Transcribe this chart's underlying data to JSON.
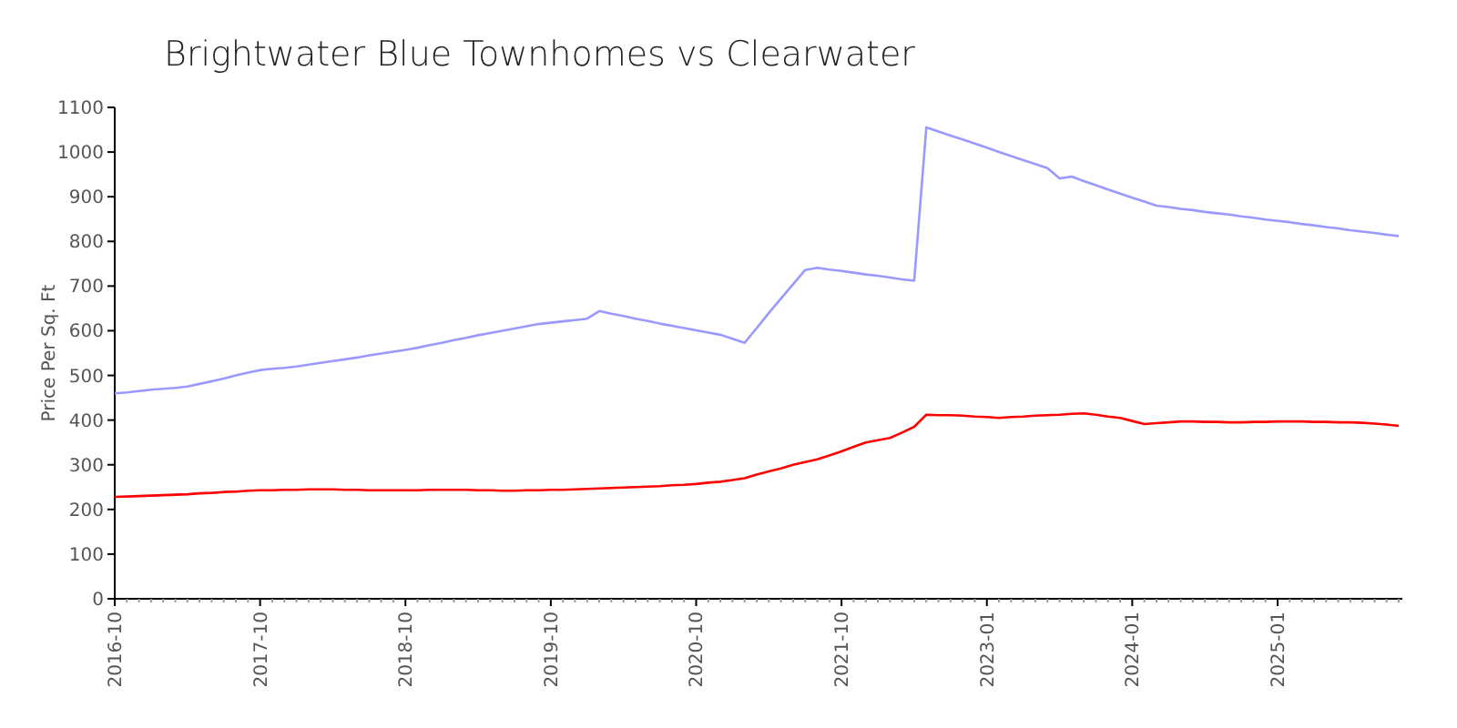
{
  "chart_data": {
    "type": "line",
    "title": "Brightwater Blue Townhomes vs Clearwater",
    "ylabel": "Price Per Sq. Ft",
    "categories": [
      "2016-10",
      null,
      null,
      null,
      null,
      null,
      null,
      null,
      null,
      null,
      null,
      null,
      "2017-10",
      null,
      null,
      null,
      null,
      null,
      null,
      null,
      null,
      null,
      null,
      null,
      "2018-10",
      null,
      null,
      null,
      null,
      null,
      null,
      null,
      null,
      null,
      null,
      null,
      "2019-10",
      null,
      null,
      null,
      null,
      null,
      null,
      null,
      null,
      null,
      null,
      null,
      "2020-10",
      null,
      null,
      null,
      null,
      null,
      null,
      null,
      null,
      null,
      null,
      null,
      "2021-10",
      null,
      null,
      null,
      null,
      null,
      null,
      null,
      null,
      null,
      null,
      null,
      "2023-01",
      null,
      null,
      null,
      null,
      null,
      null,
      null,
      null,
      null,
      null,
      null,
      "2024-01",
      null,
      null,
      null,
      null,
      null,
      null,
      null,
      null,
      null,
      null,
      null,
      "2025-01",
      null,
      null,
      null,
      null,
      null,
      null,
      null,
      null,
      null,
      null
    ],
    "ylim": [
      0,
      1100
    ],
    "yticks": [
      0,
      100,
      200,
      300,
      400,
      500,
      600,
      700,
      800,
      900,
      1000,
      1100
    ],
    "line_style": "solid",
    "series": [
      {
        "color": "#9999ff",
        "values": [
          460,
          462,
          465,
          468,
          470,
          472,
          475,
          481,
          487,
          493,
          500,
          506,
          512,
          515,
          517,
          520,
          524,
          528,
          532,
          536,
          540,
          545,
          549,
          553,
          557,
          562,
          568,
          573,
          579,
          584,
          590,
          595,
          600,
          605,
          610,
          615,
          618,
          621,
          624,
          627,
          644,
          638,
          633,
          627,
          622,
          616,
          611,
          606,
          601,
          596,
          591,
          582,
          573,
          606,
          640,
          672,
          704,
          736,
          741,
          737,
          734,
          730,
          726,
          723,
          719,
          715,
          712,
          1055,
          1046,
          1037,
          1028,
          1019,
          1010,
          1000,
          991,
          982,
          973,
          964,
          941,
          945,
          935,
          926,
          916,
          907,
          898,
          889,
          880,
          877,
          873,
          870,
          866,
          863,
          860,
          856,
          853,
          849,
          846,
          843,
          839,
          836,
          832,
          829,
          825,
          822,
          819,
          815,
          812
        ]
      },
      {
        "color": "#ff0000",
        "values": [
          228,
          229,
          230,
          231,
          232,
          233,
          234,
          236,
          237,
          239,
          240,
          242,
          243,
          243,
          244,
          244,
          245,
          245,
          245,
          244,
          244,
          243,
          243,
          243,
          243,
          243,
          244,
          244,
          244,
          244,
          243,
          243,
          242,
          242,
          243,
          243,
          244,
          244,
          245,
          246,
          247,
          248,
          249,
          250,
          251,
          252,
          254,
          255,
          257,
          260,
          262,
          266,
          270,
          278,
          285,
          292,
          300,
          306,
          312,
          321,
          330,
          340,
          350,
          355,
          360,
          372,
          385,
          412,
          411,
          411,
          410,
          408,
          407,
          405,
          407,
          408,
          410,
          411,
          412,
          414,
          415,
          412,
          408,
          405,
          398,
          391,
          393,
          395,
          397,
          397,
          396,
          396,
          395,
          395,
          396,
          396,
          397,
          397,
          397,
          396,
          396,
          395,
          395,
          394,
          392,
          390,
          387
        ]
      }
    ]
  }
}
